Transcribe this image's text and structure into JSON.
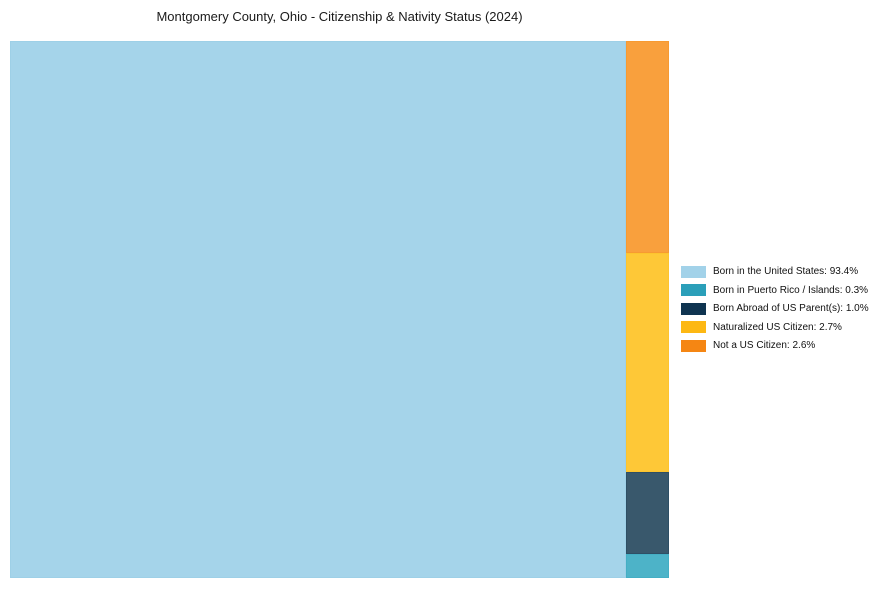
{
  "title": "Montgomery County, Ohio - Citizenship & Nativity Status (2024)",
  "chart_data": {
    "type": "treemap",
    "title": "Montgomery County, Ohio - Citizenship & Nativity Status (2024)",
    "categories": [
      "Born in the United States",
      "Born in Puerto Rico / Islands",
      "Born Abroad of US Parent(s)",
      "Naturalized US Citizen",
      "Not a US Citizen"
    ],
    "values": [
      93.4,
      0.3,
      1.0,
      2.7,
      2.6
    ],
    "unit": "%",
    "legend_labels": [
      "Born in the United States: 93.4%",
      "Born in Puerto Rico / Islands: 0.3%",
      "Born Abroad of US Parent(s): 1.0%",
      "Naturalized US Citizen: 2.7%",
      "Not a US Citizen: 2.6%"
    ],
    "block_colors": [
      "#a5d4ea",
      "#4db3c8",
      "#39586c",
      "#fec837",
      "#f9a03d"
    ],
    "block_border_colors": [
      "#8cc3e0",
      "#2b9fb9",
      "#0f3450",
      "#fdb813",
      "#f58613"
    ],
    "legend_colors": [
      "#a2d2e9",
      "#2b9fb9",
      "#0f3450",
      "#fdb813",
      "#f58613"
    ],
    "legend_position": "right",
    "grid": false,
    "layout_hint": {
      "main_block_index": 0,
      "right_column_top_to_bottom": [
        4,
        3,
        2,
        1
      ]
    }
  }
}
